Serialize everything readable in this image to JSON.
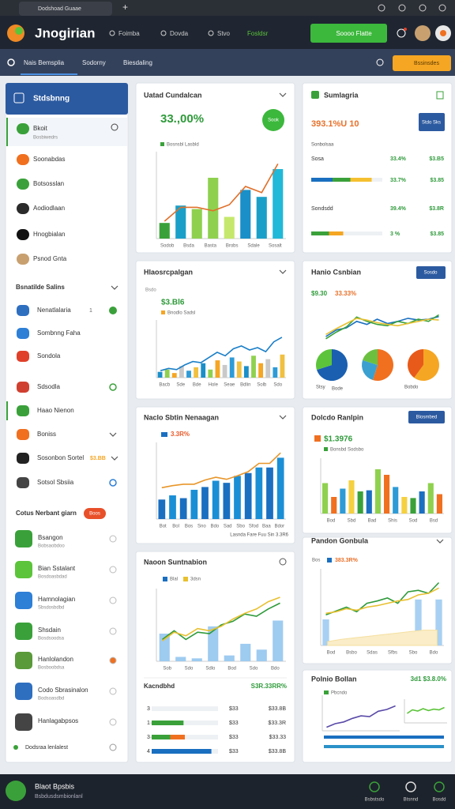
{
  "browser": {
    "tab": "Dodshoad Guaae",
    "new_tab": "+"
  },
  "header": {
    "brand": "Jnogirian",
    "nav": [
      "Foimba",
      "Dovda",
      "Stvo",
      "Fosldsr"
    ],
    "cta": "Soooo Flatte"
  },
  "subnav": {
    "tabs": [
      "Nais Bemsplia",
      "Sodorny",
      "Biesdaling"
    ],
    "action": "Bssinsdes"
  },
  "sidebar": {
    "title": "Stdsbnng",
    "items": [
      {
        "label": "Bkoit",
        "sub": "Bosbiwedrs",
        "icon": "#3aa13a"
      },
      {
        "label": "Soonabdas",
        "icon": "#f07020"
      },
      {
        "label": "Botsosslan",
        "icon": "#3aa13a"
      },
      {
        "label": "Aodiodlaan",
        "icon": "#2b2b2b"
      },
      {
        "label": "Hnogbialan",
        "icon": "#111111"
      },
      {
        "label": "Psnod Gnta",
        "icon": "#c8a070"
      }
    ],
    "section": "Bsnatilde Salins",
    "group": [
      {
        "label": "Nenatlalaria",
        "badge": "1",
        "icon": "#2e6fc0"
      },
      {
        "label": "Sombnng Faha",
        "icon": "#2e7fd6"
      },
      {
        "label": "Sondola",
        "icon": "#e0402a"
      },
      {
        "label": "Sdsodla",
        "icon": "#d04030"
      },
      {
        "label": "Haao Nienon",
        "icon": "#3aa13a"
      },
      {
        "label": "Boniss",
        "icon": "#f07020"
      },
      {
        "label": "Sosonbon Sortel",
        "tag": "$3.BB",
        "icon": "#222222"
      },
      {
        "label": "Sotsol Sbsiia",
        "icon": "#444444"
      }
    ],
    "list_title": "Cotus Nerbant giarn",
    "list_badge": "Boos",
    "list": [
      {
        "label": "Bsangon",
        "sub": "Bobsaobdoo",
        "icon": "#3aa13a"
      },
      {
        "label": "Bian Sstalant",
        "sub": "Bosdoasbdad",
        "icon": "#5cc43a"
      },
      {
        "label": "Hamnolagian",
        "sub": "Sbsdosbdbd",
        "icon": "#2e7fd6"
      },
      {
        "label": "Shsdain",
        "sub": "Bosdsoodsa",
        "icon": "#3aa13a"
      },
      {
        "label": "Hanlolandon",
        "sub": "Bosboobdsa",
        "icon": "#5a9a3a"
      },
      {
        "label": "Codo Sbrasinalon",
        "sub": "Bodsoasdbd",
        "icon": "#2e6fc0"
      },
      {
        "label": "Hanlagabpsos",
        "icon": "#444444"
      }
    ],
    "footer_item": "Dodsraa lenlalest"
  },
  "main": {
    "c1": {
      "title": "Uatad Cundalcan",
      "kpi": "33.,00%",
      "badge": "Sook",
      "legend": "Bosnsbl Lasbld",
      "chart": {
        "ylim": [
          0,
          100
        ],
        "bars": {
          "values": [
            18,
            38,
            34,
            70,
            25,
            56,
            48,
            80
          ],
          "colors": [
            "#3aa13a",
            "#1aa0c8",
            "#8fd14f",
            "#8fd14f",
            "#c5e86c",
            "#1a8fc8",
            "#1aa0c8",
            "#22b8d8"
          ]
        },
        "lines": [
          {
            "color": "#e0702a",
            "values": [
              20,
              36,
              36,
              32,
              39,
              60,
              53,
              86
            ]
          }
        ],
        "xlabels": [
          "Sodob",
          "Bsda",
          "Basta",
          "Brobs",
          "Sdale",
          "Sosalt"
        ]
      }
    },
    "c2": {
      "title": "Hlaosrcpalgan",
      "label": "Bsdo",
      "kpi": "$3.Bl6",
      "legend": "Bnodlo Sadsl",
      "chart": {
        "ylim": [
          0,
          100
        ],
        "bars": {
          "values": [
            10,
            14,
            8,
            20,
            12,
            18,
            25,
            14,
            30,
            22,
            35,
            28,
            20,
            38,
            25,
            32,
            18,
            40
          ],
          "colors": [
            "#1a8fc8",
            "#8fd14f",
            "#f5a623",
            "#c9c9c9",
            "#2e9bd6",
            "#f0c040"
          ]
        },
        "lines": [
          {
            "color": "#1a7fc8",
            "values": [
              12,
              16,
              14,
              22,
              28,
              26,
              35,
              44,
              38,
              50,
              55,
              48,
              52,
              45,
              62,
              70
            ]
          }
        ],
        "xlabels": [
          "Bacb",
          "Sde",
          "Bde",
          "Hole",
          "Seae",
          "Bdlin",
          "Solb",
          "Sdo"
        ]
      }
    },
    "c3": {
      "title": "Naclo Sbtin Nenaagan",
      "kpi": "3.3R%",
      "caption": "Lasnda Fare Fuu Sin 3.3R6",
      "chart": {
        "ylim": [
          0,
          110
        ],
        "bars": {
          "values": [
            28,
            34,
            30,
            42,
            46,
            55,
            52,
            62,
            66,
            74,
            74,
            88
          ],
          "colors": [
            "#1a6fc0",
            "#1a8fd6"
          ]
        },
        "lines": [
          {
            "color": "#e8962a",
            "values": [
              45,
              48,
              50,
              50,
              56,
              60,
              57,
              62,
              68,
              80,
              80,
              95
            ]
          }
        ],
        "xlabels": [
          "Bot",
          "Bol",
          "Bos",
          "Sno",
          "Bdo",
          "Sad",
          "Sbo",
          "Sfod",
          "Baa",
          "Bdor"
        ]
      }
    },
    "c4": {
      "title": "Naoon Suntnabion",
      "legend": [
        "Blal",
        "3dsn"
      ],
      "chart": {
        "ylim": [
          0,
          100
        ],
        "bars": {
          "values": [
            38,
            6,
            4,
            48,
            8,
            24,
            16,
            56
          ],
          "colors": [
            "#9ecbf0"
          ]
        },
        "lines": [
          {
            "color": "#2e9a3a",
            "values": [
              30,
              42,
              30,
              40,
              38,
              50,
              55,
              65,
              62,
              72,
              80
            ]
          },
          {
            "color": "#e8c030",
            "values": [
              28,
              40,
              35,
              45,
              42,
              48,
              58,
              66,
              72,
              82,
              88
            ]
          }
        ],
        "xlabels": [
          "Sob",
          "Sdo",
          "Sdlo",
          "Bod",
          "Sdo",
          "Bdo"
        ]
      },
      "table": {
        "head": [
          "Kacndbhd",
          "S3R.33RR%"
        ],
        "rows": [
          {
            "label": "3",
            "segs": [
              0
            ],
            "colors": [
              "#3aa13a"
            ],
            "v1": "$33",
            "v2": "$33.8B"
          },
          {
            "label": "1·3",
            "segs": [
              48
            ],
            "colors": [
              "#3aa13a"
            ],
            "v1": "$33",
            "v2": "$33.3R"
          },
          {
            "label": "3·",
            "segs": [
              28,
              22
            ],
            "colors": [
              "#3aa13a",
              "#f07020"
            ],
            "v1": "$33",
            "v2": "$33.33"
          },
          {
            "label": "4",
            "segs": [
              90
            ],
            "colors": [
              "#1a6fc0"
            ],
            "v1": "$33",
            "v2": "$33.8B"
          }
        ]
      }
    }
  },
  "side": {
    "r1": {
      "title": "Sumlagria",
      "kpi": "393.1%U 10",
      "button": "Stdo Sks",
      "sub": "Sonbolsaa",
      "rows": [
        {
          "label": "Sosa",
          "v1": "33.4%",
          "v2": "$3.B5"
        },
        {
          "segs": [
            30,
            25,
            30
          ],
          "colors": [
            "#1a6fc0",
            "#3aa13a",
            "#f5c030"
          ],
          "v1": "33.7%",
          "v2": "$3.85"
        },
        {
          "label": "Sondsdd",
          "v1": "39.4%",
          "v2": "$3.8R"
        },
        {
          "segs": [
            25,
            20
          ],
          "colors": [
            "#3aa13a",
            "#f5a623"
          ],
          "v1": "3 %",
          "v2": "$3.85"
        }
      ]
    },
    "r2": {
      "title": "Hanio Csnbian",
      "button": "Sosdo",
      "kpi": [
        "$9.30",
        "33.33%"
      ],
      "chart": {
        "ylim": [
          0,
          100
        ],
        "lines": [
          {
            "color": "#1a6fc0",
            "values": [
              20,
              35,
              40,
              55,
              48,
              60,
              50,
              55,
              62,
              58,
              60,
              66
            ]
          },
          {
            "color": "#3aa13a",
            "values": [
              15,
              30,
              42,
              65,
              55,
              48,
              45,
              55,
              50,
              60,
              55,
              70
            ]
          },
          {
            "color": "#e8c030",
            "values": [
              25,
              38,
              50,
              62,
              58,
              52,
              48,
              45,
              50,
              55,
              60,
              58
            ]
          }
        ]
      },
      "pies": [
        {
          "values": [
            70,
            30
          ],
          "colors": [
            "#1a5fb0",
            "#5cc43a"
          ]
        },
        {
          "values": [
            55,
            25,
            20
          ],
          "colors": [
            "#f07020",
            "#3aa0d0",
            "#6cc040"
          ]
        },
        {
          "values": [
            60,
            40
          ],
          "colors": [
            "#f5a623",
            "#e85a1a"
          ]
        }
      ],
      "pie_labels": [
        "Stsy",
        "Bode",
        "Bobdo"
      ]
    },
    "r3": {
      "title": "Dolcdo Ranlpin",
      "button": "Blosmbed",
      "kpi": "$1.3976",
      "legend": "Bonsbd Sodsbo",
      "chart": {
        "ylim": [
          0,
          100
        ],
        "bars": {
          "values": [
            55,
            30,
            45,
            60,
            40,
            42,
            80,
            70,
            48,
            30,
            28,
            40,
            55,
            35
          ],
          "colors": [
            "#8fd14f",
            "#f07020",
            "#2e9bd6",
            "#f5d040",
            "#3aa13a",
            "#1a6fc0"
          ]
        },
        "xlabels": [
          "Bod",
          "Sbd",
          "Bad",
          "Shis",
          "Sod",
          "Bsd"
        ]
      }
    },
    "r4": {
      "title": "Pandon Gonbula",
      "legend": [
        "Bos",
        "383.3R%"
      ],
      "chart": {
        "ylim": [
          0,
          100
        ],
        "bars": {
          "values": [
            34,
            0,
            0,
            0,
            0,
            0,
            0,
            0,
            0,
            60,
            0,
            60
          ],
          "colors": [
            "#a8d0f2"
          ]
        },
        "lines": [
          {
            "color": "#f5e0a0",
            "fill": "#faedc8",
            "values": [
              5,
              8,
              10,
              12,
              14,
              16,
              18,
              20,
              20
            ]
          },
          {
            "color": "#2e9a3a",
            "values": [
              40,
              45,
              50,
              44,
              55,
              58,
              62,
              55,
              70,
              72,
              68,
              82
            ]
          },
          {
            "color": "#e8c030",
            "values": [
              42,
              44,
              48,
              46,
              50,
              52,
              55,
              58,
              60,
              66,
              68,
              75
            ]
          }
        ],
        "xlabels": [
          "Bod",
          "Bsbo",
          "Sdas",
          "Sfbs",
          "Sbo",
          "Bdo"
        ]
      }
    },
    "r5": {
      "title": "Polnio Bollan",
      "value": "3d1 $3.8.0%",
      "legend": "Pbcndo",
      "chart": {
        "ylim": [
          0,
          100
        ],
        "lines": [
          {
            "color": "#5a4aa8",
            "values": [
              10,
              20,
              25,
              35,
              42,
              40,
              55,
              60,
              70
            ]
          }
        ]
      },
      "chart2": {
        "ylim": [
          0,
          100
        ],
        "lines": [
          {
            "color": "#5cc43a",
            "values": [
              40,
              55,
              50,
              60,
              52,
              58,
              55,
              65
            ]
          }
        ]
      },
      "bars": [
        {
          "segs": [
            100
          ],
          "colors": [
            "#1a6fc0"
          ]
        },
        {
          "segs": [
            100
          ],
          "colors": [
            "#2a90c8"
          ]
        }
      ]
    }
  },
  "footer": {
    "title": "Blaot Bpsbis",
    "sub": "Bsbdusdsmbionlanl",
    "actions": [
      "Bsbstsdo",
      "Btsnnd",
      "Bosdd"
    ]
  }
}
